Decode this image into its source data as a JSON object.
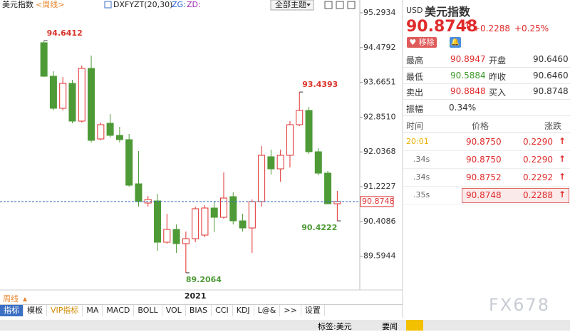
{
  "chart_data": {
    "type": "candlestick",
    "symbol": "美元指数",
    "period": "<周线>",
    "indicator": "DXFYZT(20,30)",
    "zg": "ZG:",
    "zd": "ZD:",
    "categories": [
      null,
      null,
      null,
      null,
      null,
      null,
      null,
      null,
      null,
      null,
      null,
      null,
      null,
      null,
      null,
      null,
      "2021",
      null,
      null,
      null,
      null,
      null,
      null,
      null,
      null,
      null,
      null,
      null,
      null,
      null,
      null,
      null
    ],
    "open": [
      94.5928,
      93.8088,
      93.0581,
      93.642,
      92.7579,
      93.9923,
      92.3409,
      92.7078,
      92.4243,
      92.3242,
      91.29,
      90.8396,
      90.8896,
      89.9223,
      90.2225,
      89.8889,
      90.0057,
      90.0891,
      90.7229,
      90.5061,
      90.9898,
      90.4227,
      90.2559,
      90.873,
      91.9239,
      91.6403,
      91.9573,
      92.6745,
      93.0081,
      92.0407,
      91.5403,
      90.823
    ],
    "high": [
      94.6412,
      93.9256,
      93.7921,
      93.7254,
      94.059,
      94.2925,
      92.7245,
      92.9247,
      92.6244,
      92.4576,
      92.0573,
      91.0064,
      91.0565,
      90.5895,
      90.3393,
      90.1725,
      90.7562,
      90.7896,
      90.8896,
      91.5569,
      91.0899,
      90.5895,
      90.923,
      92.1741,
      92.0907,
      92.0907,
      92.7579,
      93.4393,
      93.0915,
      92.1241,
      91.5903,
      91.1232
    ],
    "low": [
      93.7921,
      93.0081,
      93.0081,
      92.7078,
      92.7245,
      92.2575,
      92.3075,
      92.3742,
      92.2575,
      91.2232,
      90.7562,
      90.7562,
      89.722,
      89.8889,
      89.672,
      89.2064,
      89.9223,
      90.039,
      90.1558,
      90.4727,
      90.3393,
      90.1725,
      89.672,
      90.7562,
      91.5069,
      91.3401,
      91.6737,
      92.6411,
      91.9906,
      91.4902,
      90.823,
      90.4222
    ],
    "close": [
      93.8088,
      93.0581,
      93.642,
      92.7579,
      93.9923,
      92.3075,
      92.6745,
      92.4243,
      92.3242,
      91.2566,
      90.873,
      90.923,
      89.9223,
      90.2225,
      89.8889,
      90.0057,
      90.7062,
      90.7229,
      90.5061,
      90.9564,
      90.4227,
      90.2559,
      90.873,
      91.9573,
      91.6403,
      91.9573,
      92.6745,
      93.0081,
      92.0407,
      91.5403,
      90.823,
      90.8748
    ],
    "up_color": "#e03030",
    "down_color": "#4e9a36",
    "ylim": [
      88.8379,
      95.4268
    ],
    "yticks": [
      95.2934,
      94.4792,
      93.6651,
      {
        "value": 92.851,
        "label": "92.8510"
      },
      92.0368,
      91.2227,
      90.4086,
      89.5944
    ],
    "last_price": 90.8748,
    "annotations": [
      {
        "value": 94.6412,
        "color": "#d9342b"
      },
      {
        "value": 93.4393,
        "color": "#d9342b"
      },
      {
        "value": 89.2064,
        "color": "#4e9a36"
      },
      {
        "value": 90.4222,
        "color": "#4e9a36"
      }
    ]
  },
  "toolbar": {
    "theme": "全部主题"
  },
  "bottom": {
    "period": "周线",
    "tabs": [
      "指标",
      "模板",
      "VIP指标",
      "MA",
      "MACD",
      "BOLL",
      "VOL",
      "BIAS",
      "CCI",
      "KDJ",
      "L@&",
      ">>",
      "设置"
    ]
  },
  "quote": {
    "currency": "USD",
    "name": "美元指数",
    "price": "90.8748",
    "change": "+0.2288",
    "change_pct": "+0.25%",
    "remove": "移除",
    "rows": [
      [
        "最高",
        "90.8947",
        "开盘",
        "90.6460"
      ],
      [
        "最低",
        "90.5884",
        "昨收",
        "90.6460"
      ],
      [
        "卖出",
        "90.8848",
        "买入",
        "90.8748"
      ],
      [
        "振幅",
        "0.34%"
      ]
    ]
  },
  "trades": {
    "header": [
      "时间",
      "价格",
      "涨跌"
    ],
    "rows": [
      [
        "20:01",
        "90.8750",
        "0.2290"
      ],
      [
        ".34s",
        "90.8750",
        "0.2290"
      ],
      [
        ".34s",
        "90.8752",
        "0.2292"
      ],
      [
        ".35s",
        "90.8748",
        "0.2288"
      ]
    ]
  },
  "status": {
    "tag": "标签:美元",
    "news": "要闻"
  },
  "watermark": "FX678"
}
